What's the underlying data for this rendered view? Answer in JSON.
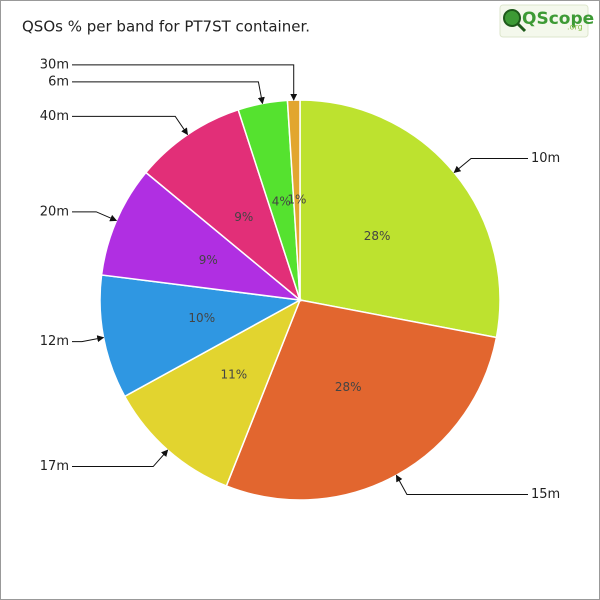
{
  "chart_data": {
    "type": "pie",
    "title": "QSOs % per band for PT7ST container.",
    "logo": {
      "name": "QScope",
      "suffix": ".org"
    },
    "categories": [
      "10m",
      "15m",
      "17m",
      "12m",
      "20m",
      "40m",
      "6m",
      "30m"
    ],
    "values": [
      28,
      28,
      11,
      10,
      9,
      9,
      4,
      1
    ],
    "value_labels": [
      "28%",
      "28%",
      "11%",
      "10%",
      "9%",
      "9%",
      "4%",
      "1%"
    ],
    "colors": [
      "#bde22f",
      "#e2662f",
      "#e2d42f",
      "#2f97e2",
      "#b02fe2",
      "#e22f78",
      "#55e22f",
      "#e2a62f"
    ]
  }
}
